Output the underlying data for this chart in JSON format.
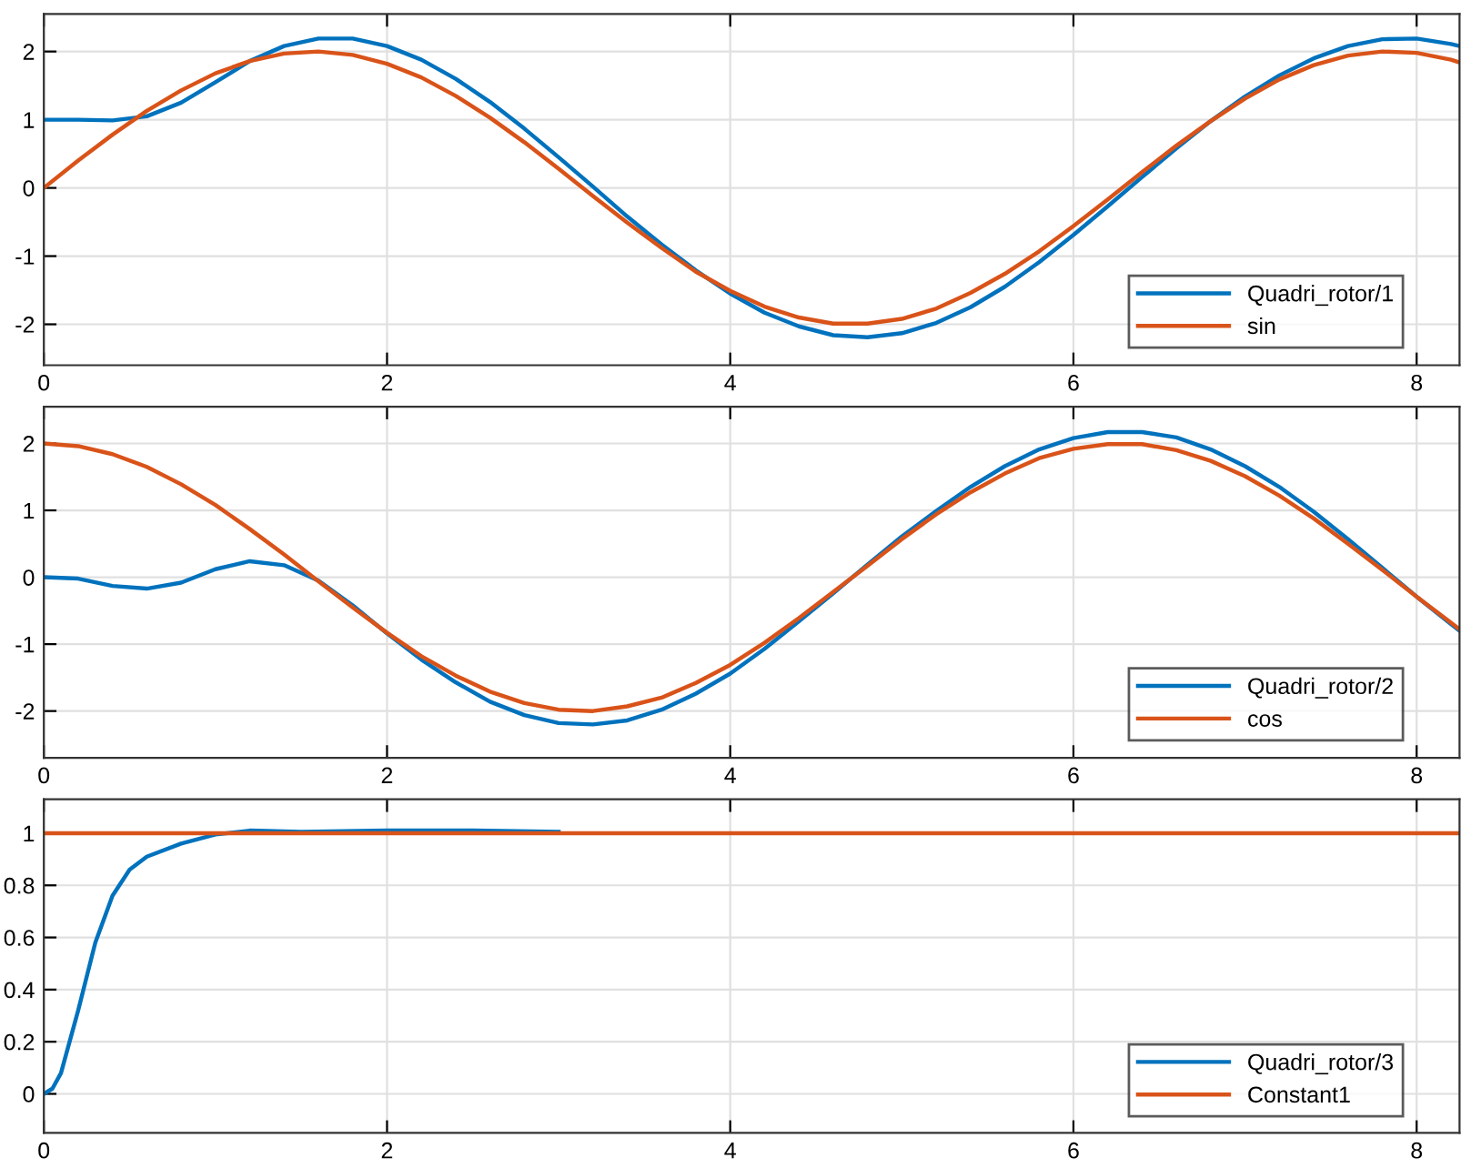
{
  "chart_data": [
    {
      "type": "line",
      "x": [
        0,
        0.2,
        0.4,
        0.6,
        0.8,
        1.0,
        1.2,
        1.4,
        1.6,
        1.8,
        2.0,
        2.2,
        2.4,
        2.6,
        2.8,
        3.0,
        3.2,
        3.4,
        3.6,
        3.8,
        4.0,
        4.2,
        4.4,
        4.6,
        4.8,
        5.0,
        5.2,
        5.4,
        5.6,
        5.8,
        6.0,
        6.2,
        6.4,
        6.6,
        6.8,
        7.0,
        7.2,
        7.4,
        7.6,
        7.8,
        8.0,
        8.2,
        8.25
      ],
      "series": [
        {
          "name": "Quadri_rotor/1",
          "color": "#0072bd",
          "values": [
            1.0,
            1.0,
            0.99,
            1.05,
            1.25,
            1.55,
            1.86,
            2.08,
            2.19,
            2.19,
            2.08,
            1.88,
            1.6,
            1.26,
            0.87,
            0.45,
            0.02,
            -0.42,
            -0.83,
            -1.21,
            -1.55,
            -1.83,
            -2.03,
            -2.16,
            -2.19,
            -2.13,
            -1.98,
            -1.75,
            -1.45,
            -1.09,
            -0.69,
            -0.27,
            0.16,
            0.58,
            0.98,
            1.34,
            1.65,
            1.9,
            2.08,
            2.18,
            2.19,
            2.11,
            2.08
          ]
        },
        {
          "name": "sin",
          "color": "#d95319",
          "values": [
            0,
            0.4,
            0.78,
            1.13,
            1.43,
            1.68,
            1.86,
            1.97,
            2.0,
            1.95,
            1.82,
            1.62,
            1.35,
            1.03,
            0.67,
            0.28,
            -0.12,
            -0.51,
            -0.88,
            -1.23,
            -1.51,
            -1.74,
            -1.9,
            -1.99,
            -1.99,
            -1.92,
            -1.77,
            -1.54,
            -1.26,
            -0.93,
            -0.56,
            -0.17,
            0.23,
            0.62,
            0.98,
            1.31,
            1.59,
            1.8,
            1.94,
            2.0,
            1.98,
            1.88,
            1.84
          ]
        }
      ],
      "xlim": [
        0,
        8.25
      ],
      "ylim": [
        -2.6,
        2.55
      ],
      "xticks": [
        0,
        2,
        4,
        6,
        8
      ],
      "yticks": [
        -2,
        -1,
        0,
        1,
        2
      ],
      "grid": true,
      "legend": "bottom right"
    },
    {
      "type": "line",
      "x": [
        0,
        0.2,
        0.4,
        0.6,
        0.8,
        1.0,
        1.2,
        1.4,
        1.6,
        1.8,
        2.0,
        2.2,
        2.4,
        2.6,
        2.8,
        3.0,
        3.2,
        3.4,
        3.6,
        3.8,
        4.0,
        4.2,
        4.4,
        4.6,
        4.8,
        5.0,
        5.2,
        5.4,
        5.6,
        5.8,
        6.0,
        6.2,
        6.4,
        6.6,
        6.8,
        7.0,
        7.2,
        7.4,
        7.6,
        7.8,
        8.0,
        8.2,
        8.25
      ],
      "series": [
        {
          "name": "Quadri_rotor/2",
          "color": "#0072bd",
          "values": [
            0,
            -0.02,
            -0.13,
            -0.17,
            -0.08,
            0.12,
            0.24,
            0.18,
            -0.05,
            -0.42,
            -0.84,
            -1.23,
            -1.57,
            -1.86,
            -2.06,
            -2.18,
            -2.2,
            -2.14,
            -1.98,
            -1.74,
            -1.44,
            -1.07,
            -0.66,
            -0.24,
            0.19,
            0.61,
            0.99,
            1.35,
            1.66,
            1.91,
            2.08,
            2.17,
            2.17,
            2.09,
            1.91,
            1.66,
            1.35,
            0.98,
            0.57,
            0.14,
            -0.29,
            -0.7,
            -0.8
          ]
        },
        {
          "name": "cos",
          "color": "#d95319",
          "values": [
            2.0,
            1.96,
            1.84,
            1.65,
            1.39,
            1.08,
            0.72,
            0.34,
            -0.06,
            -0.45,
            -0.83,
            -1.18,
            -1.47,
            -1.71,
            -1.88,
            -1.98,
            -2.0,
            -1.93,
            -1.8,
            -1.58,
            -1.31,
            -0.98,
            -0.61,
            -0.22,
            0.17,
            0.57,
            0.94,
            1.27,
            1.55,
            1.78,
            1.92,
            1.99,
            1.99,
            1.9,
            1.74,
            1.51,
            1.22,
            0.88,
            0.5,
            0.11,
            -0.29,
            -0.68,
            -0.78
          ]
        }
      ],
      "xlim": [
        0,
        8.25
      ],
      "ylim": [
        -2.7,
        2.55
      ],
      "xticks": [
        0,
        2,
        4,
        6,
        8
      ],
      "yticks": [
        -2,
        -1,
        0,
        1,
        2
      ],
      "grid": true,
      "legend": "bottom right"
    },
    {
      "type": "line",
      "series": [
        {
          "name": "Quadri_rotor/3",
          "color": "#0072bd",
          "x": [
            0,
            0.05,
            0.1,
            0.2,
            0.3,
            0.4,
            0.5,
            0.6,
            0.8,
            1.0,
            1.2,
            1.5,
            2.0,
            2.5,
            3.0
          ],
          "values": [
            0,
            0.02,
            0.08,
            0.32,
            0.58,
            0.76,
            0.86,
            0.91,
            0.96,
            0.995,
            1.01,
            1.005,
            1.01,
            1.01,
            1.005
          ]
        },
        {
          "name": "Constant1",
          "color": "#d95319",
          "x": [
            0,
            8.25
          ],
          "values": [
            1,
            1
          ]
        }
      ],
      "xlim": [
        0,
        8.25
      ],
      "ylim": [
        -0.15,
        1.13
      ],
      "xticks": [
        0,
        2,
        4,
        6,
        8
      ],
      "yticks": [
        0,
        0.2,
        0.4,
        0.6,
        0.8,
        1
      ],
      "grid": true,
      "legend": "bottom right"
    }
  ]
}
